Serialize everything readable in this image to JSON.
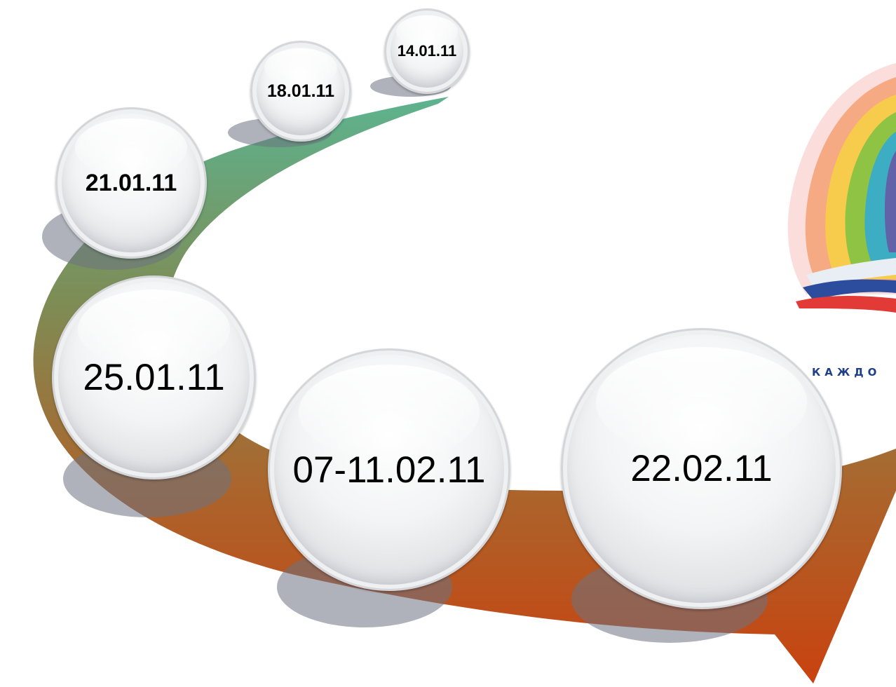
{
  "logo": {
    "tagline": "КАЖДО"
  },
  "timeline": [
    {
      "date": "14.01.11"
    },
    {
      "date": "18.01.11"
    },
    {
      "date": "21.01.11"
    },
    {
      "date": "25.01.11"
    },
    {
      "date": "07-11.02.11"
    },
    {
      "date": "22.02.11"
    }
  ],
  "colors": {
    "path_start": "#5db38f",
    "path_mid": "#7e8c55",
    "path_end": "#c9420f"
  }
}
